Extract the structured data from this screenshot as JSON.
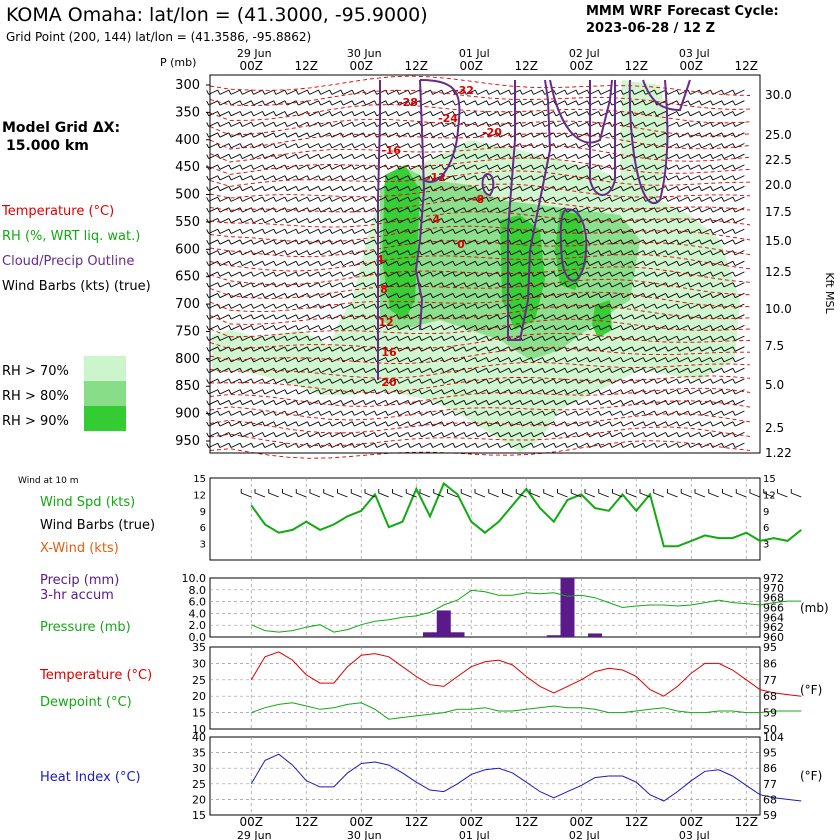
{
  "header": {
    "station": "KOMA Omaha:",
    "latlon": "lat/lon = (41.3000, -95.9000)",
    "gridpoint": "Grid Point (200, 144) lat/lon = (41.3586, -95.8862)",
    "model_line1": "MMM WRF Forecast Cycle:",
    "model_line2": "2023-06-28 / 12  Z",
    "grid_dx_label": "Model Grid ΔX:",
    "grid_dx_value": "15.000 km"
  },
  "colors": {
    "temperature": "#dd0000",
    "rh": "#11aa11",
    "cloud": "#6a2a8a",
    "pressure": "#11aa11",
    "precip": "#5a1a8a",
    "heat_index": "#1a1abf",
    "rh70": "#ccf5cc",
    "rh80": "#88dd88",
    "rh90": "#33cc33"
  },
  "time_axis": {
    "ticks": [
      "00Z",
      "12Z",
      "00Z",
      "12Z",
      "00Z",
      "12Z",
      "00Z",
      "12Z",
      "00Z",
      "12Z"
    ],
    "dates": [
      "29 Jun",
      "30 Jun",
      "01 Jul",
      "02 Jul",
      "03 Jul"
    ]
  },
  "upper": {
    "p_label": "P (mb)",
    "pressure_ticks": [
      "300",
      "350",
      "400",
      "450",
      "500",
      "550",
      "600",
      "650",
      "700",
      "750",
      "800",
      "850",
      "900",
      "950"
    ],
    "height_ticks": [
      "30.0",
      "25.0",
      "22.5",
      "20.0",
      "17.5",
      "15.0",
      "12.5",
      "10.0",
      "7.5",
      "5.0",
      "2.5",
      "1.22"
    ],
    "height_axis_label": "Kft MSL",
    "legend": {
      "temperature": "Temperature (°C)",
      "rh": "RH (%, WRT liq. wat.)",
      "cloud": "Cloud/Precip Outline",
      "wind": "Wind Barbs (kts) (true)"
    },
    "rh_legend": [
      "RH > 70%",
      "RH > 80%",
      "RH > 90%"
    ],
    "temp_contour_labels": [
      "-28",
      "-32",
      "-24",
      "-20",
      "-16",
      "-12",
      "-8",
      "-4",
      "0",
      "4",
      "8",
      "12",
      "16",
      "20"
    ]
  },
  "panel_wind": {
    "title": "Wind at 10 m",
    "label_speed": "Wind Spd (kts)",
    "label_barbs": "Wind Barbs (true)",
    "label_xwind": "X-Wind (kts)",
    "yticks": [
      "15",
      "12",
      "9",
      "6",
      "3"
    ]
  },
  "panel_precip": {
    "label_precip_1": "Precip (mm)",
    "label_precip_2": "3-hr accum",
    "label_pressure": "Pressure (mb)",
    "unit_right": "(mb)",
    "yticks_left": [
      "10.0",
      "8.0",
      "6.0",
      "4.0",
      "2.0",
      "0.0"
    ],
    "yticks_right": [
      "972",
      "970",
      "968",
      "966",
      "964",
      "962",
      "960"
    ]
  },
  "panel_temp": {
    "label_temp": "Temperature (°C)",
    "label_dew": "Dewpoint (°C)",
    "unit_right": "(°F)",
    "yticks_left": [
      "35",
      "30",
      "25",
      "20",
      "15",
      "10"
    ],
    "yticks_right": [
      "95",
      "86",
      "77",
      "68",
      "59",
      "50"
    ]
  },
  "panel_heat": {
    "label": "Heat Index (°C)",
    "unit_right": "(°F)",
    "yticks_left": [
      "40",
      "35",
      "30",
      "25",
      "20",
      "15"
    ],
    "yticks_right": [
      "104",
      "95",
      "86",
      "77",
      "68",
      "59"
    ]
  },
  "chart_data": [
    {
      "type": "line",
      "title": "Wind at 10 m",
      "x_hours": [
        0,
        3,
        6,
        9,
        12,
        15,
        18,
        21,
        24,
        27,
        30,
        33,
        36,
        39,
        42,
        45,
        48,
        51,
        54,
        57,
        60,
        63,
        66,
        69,
        72,
        75,
        78,
        81,
        84,
        87,
        90,
        93,
        96,
        99,
        102,
        105,
        108,
        111,
        114,
        117,
        120
      ],
      "series": [
        {
          "name": "Wind Spd (kts)",
          "values": [
            10,
            6.5,
            5,
            5.5,
            7,
            5.5,
            6.5,
            8,
            9,
            12,
            6,
            7,
            13,
            8,
            14,
            12,
            7,
            5,
            7,
            10,
            13,
            9.5,
            7,
            11,
            12,
            9.5,
            9,
            12,
            9,
            12,
            2.5,
            2.5,
            3.5,
            4.5,
            4,
            4,
            5,
            3.5,
            4,
            3.5,
            5.5
          ]
        }
      ],
      "ylim": [
        0,
        15
      ]
    },
    {
      "type": "bar",
      "title": "Precip (mm) 3-hr accum",
      "x_hours": [
        39,
        42,
        45,
        66,
        69,
        75
      ],
      "values": [
        0.8,
        4.5,
        0.8,
        0.3,
        10.5,
        0.6
      ],
      "ylim": [
        0,
        10
      ]
    },
    {
      "type": "line",
      "title": "Pressure (mb)",
      "x_hours": [
        0,
        3,
        6,
        9,
        12,
        15,
        18,
        21,
        24,
        27,
        30,
        33,
        36,
        39,
        42,
        45,
        48,
        51,
        54,
        57,
        60,
        63,
        66,
        69,
        72,
        75,
        78,
        81,
        84,
        87,
        90,
        93,
        96,
        99,
        102,
        105,
        108,
        111,
        114,
        117,
        120
      ],
      "series": [
        {
          "name": "Pressure (mb)",
          "values": [
            962.5,
            961.3,
            961.0,
            961.3,
            962.0,
            962.5,
            961.0,
            961.5,
            962.5,
            963.2,
            963.5,
            964.0,
            964.3,
            965.0,
            966.5,
            967.5,
            969.5,
            969.2,
            968.5,
            968.5,
            969.0,
            968.8,
            969.0,
            968.3,
            968.5,
            968.0,
            967.0,
            966.0,
            966.3,
            966.5,
            966.5,
            966.3,
            966.5,
            967.0,
            967.5,
            967.0,
            966.8,
            966.5,
            967.0,
            967.3,
            967.3
          ]
        }
      ],
      "ylim": [
        960,
        972
      ]
    },
    {
      "type": "line",
      "title": "Temperature / Dewpoint",
      "x_hours": [
        0,
        3,
        6,
        9,
        12,
        15,
        18,
        21,
        24,
        27,
        30,
        33,
        36,
        39,
        42,
        45,
        48,
        51,
        54,
        57,
        60,
        63,
        66,
        69,
        72,
        75,
        78,
        81,
        84,
        87,
        90,
        93,
        96,
        99,
        102,
        105,
        108,
        111,
        114,
        117,
        120
      ],
      "series": [
        {
          "name": "Temperature (°C)",
          "values": [
            25,
            32,
            33.5,
            31,
            26.5,
            24,
            24,
            29,
            32.5,
            33,
            32,
            29,
            26,
            23.5,
            23,
            26,
            29,
            30.5,
            31,
            29.5,
            26,
            23,
            21,
            23,
            25,
            27.5,
            28.5,
            28,
            26,
            22,
            20,
            23,
            27,
            30,
            30,
            28,
            25,
            22,
            21,
            20.5,
            20
          ]
        },
        {
          "name": "Dewpoint (°C)",
          "values": [
            15,
            16.5,
            17.5,
            18,
            17,
            16,
            16.5,
            17.5,
            18,
            16,
            13,
            13.5,
            14,
            14.5,
            15,
            16,
            16,
            16.5,
            15.5,
            15.5,
            16,
            16.5,
            17,
            16.5,
            16.5,
            16,
            15,
            15,
            15.5,
            16,
            16.5,
            15.5,
            15,
            15,
            15.5,
            15.5,
            15,
            15,
            15.5,
            15.5,
            15.5
          ]
        }
      ],
      "ylim": [
        10,
        35
      ]
    },
    {
      "type": "line",
      "title": "Heat Index",
      "x_hours": [
        0,
        3,
        6,
        9,
        12,
        15,
        18,
        21,
        24,
        27,
        30,
        33,
        36,
        39,
        42,
        45,
        48,
        51,
        54,
        57,
        60,
        63,
        66,
        69,
        72,
        75,
        78,
        81,
        84,
        87,
        90,
        93,
        96,
        99,
        102,
        105,
        108,
        111,
        114,
        117,
        120
      ],
      "series": [
        {
          "name": "Heat Index (°C)",
          "values": [
            25,
            32.5,
            34.5,
            31,
            26,
            24,
            24,
            28.5,
            31.5,
            32,
            31,
            28.5,
            25.5,
            23,
            22.5,
            25,
            28,
            29.5,
            30,
            28.5,
            25.5,
            22.5,
            20.5,
            22.5,
            24.5,
            27,
            27.5,
            27.5,
            25.5,
            21.5,
            19.5,
            22.5,
            26,
            29,
            29.5,
            27.5,
            24.5,
            21.5,
            20.5,
            20,
            19.5
          ]
        }
      ],
      "ylim": [
        15,
        40
      ]
    }
  ]
}
